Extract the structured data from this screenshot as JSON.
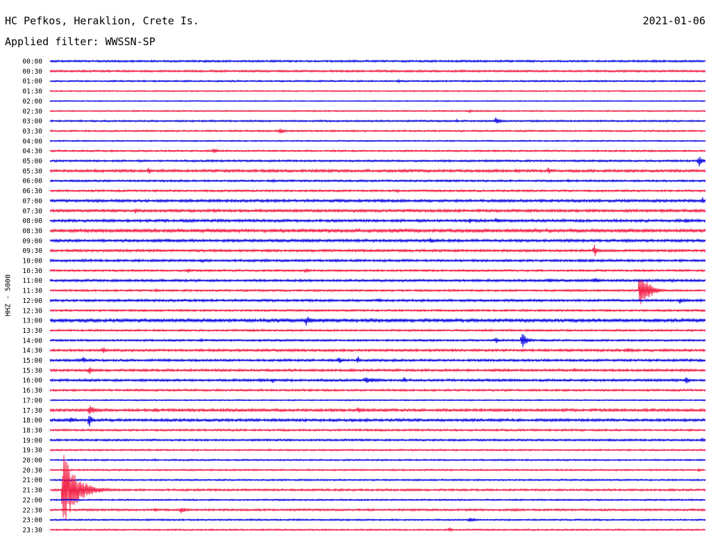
{
  "header": {
    "station": "HC Pefkos, Heraklion, Crete Is.",
    "date": "2021-01-06",
    "filter": "Applied filter: WWSSN-SP"
  },
  "chart_data": {
    "type": "line",
    "title": "HC Pefkos, Heraklion, Crete Is.",
    "subtitle": "Applied filter: WWSSN-SP",
    "date": "2021-01-06",
    "ylabel": "HHZ - 5000",
    "xlabel": "",
    "grid": false,
    "trace_colors": [
      "#0000e0",
      "#f0143c"
    ],
    "tick_labels": [
      "00:00",
      "00:30",
      "01:00",
      "01:30",
      "02:00",
      "02:30",
      "03:00",
      "03:30",
      "04:00",
      "04:30",
      "05:00",
      "05:30",
      "06:00",
      "06:30",
      "07:00",
      "07:30",
      "08:00",
      "08:30",
      "09:00",
      "09:30",
      "10:00",
      "10:30",
      "11:00",
      "11:30",
      "12:00",
      "12:30",
      "13:00",
      "13:30",
      "14:00",
      "14:30",
      "15:00",
      "15:30",
      "16:00",
      "16:30",
      "17:00",
      "17:30",
      "18:00",
      "18:30",
      "19:00",
      "19:30",
      "20:00",
      "20:30",
      "21:00",
      "21:30",
      "22:00",
      "22:30",
      "23:00",
      "23:30"
    ],
    "traces": [
      {
        "start": "00:00",
        "noise": 1.5,
        "events": [
          [
            0.92,
            3,
            15
          ]
        ]
      },
      {
        "start": "00:30",
        "noise": 1.5,
        "events": [
          [
            0.01,
            2,
            8
          ],
          [
            0.05,
            3,
            6
          ]
        ]
      },
      {
        "start": "01:00",
        "noise": 1.2,
        "events": [
          [
            0.53,
            3,
            12
          ]
        ]
      },
      {
        "start": "01:30",
        "noise": 1.0,
        "events": []
      },
      {
        "start": "02:00",
        "noise": 0.8,
        "events": []
      },
      {
        "start": "02:30",
        "noise": 1.0,
        "events": [
          [
            0.64,
            4,
            6
          ]
        ]
      },
      {
        "start": "03:00",
        "noise": 1.3,
        "events": [
          [
            0.62,
            3,
            6
          ],
          [
            0.68,
            6,
            14
          ]
        ]
      },
      {
        "start": "03:30",
        "noise": 1.3,
        "events": [
          [
            0.35,
            5,
            14
          ]
        ]
      },
      {
        "start": "04:00",
        "noise": 1.0,
        "events": []
      },
      {
        "start": "04:30",
        "noise": 1.3,
        "events": [
          [
            0.25,
            5,
            10
          ]
        ]
      },
      {
        "start": "05:00",
        "noise": 1.5,
        "events": [
          [
            0.99,
            10,
            10
          ]
        ]
      },
      {
        "start": "05:30",
        "noise": 2.0,
        "events": [
          [
            0.15,
            7,
            5
          ],
          [
            0.71,
            4,
            10
          ],
          [
            0.76,
            6,
            10
          ]
        ]
      },
      {
        "start": "06:00",
        "noise": 1.5,
        "events": [
          [
            0.34,
            3,
            8
          ],
          [
            0.79,
            3,
            8
          ]
        ]
      },
      {
        "start": "06:30",
        "noise": 1.5,
        "events": [
          [
            0.53,
            4,
            6
          ]
        ]
      },
      {
        "start": "07:00",
        "noise": 2.0,
        "events": [
          [
            0.995,
            6,
            6
          ]
        ]
      },
      {
        "start": "07:30",
        "noise": 2.0,
        "events": [
          [
            0.13,
            4,
            10
          ],
          [
            0.25,
            4,
            6
          ],
          [
            0.73,
            3,
            12
          ]
        ]
      },
      {
        "start": "08:00",
        "noise": 2.0,
        "events": [
          [
            0.64,
            7,
            5
          ],
          [
            0.68,
            4,
            25
          ],
          [
            0.97,
            6,
            12
          ]
        ]
      },
      {
        "start": "08:30",
        "noise": 2.5,
        "events": [
          [
            0.4,
            2,
            40
          ],
          [
            0.7,
            2,
            40
          ]
        ]
      },
      {
        "start": "09:00",
        "noise": 2.0,
        "events": [
          [
            0.08,
            3,
            10
          ],
          [
            0.18,
            4,
            10
          ],
          [
            0.58,
            5,
            14
          ],
          [
            0.98,
            3,
            8
          ]
        ]
      },
      {
        "start": "09:30",
        "noise": 1.8,
        "events": [
          [
            0.26,
            4,
            6
          ],
          [
            0.31,
            3,
            6
          ],
          [
            0.83,
            11,
            8
          ]
        ]
      },
      {
        "start": "10:00",
        "noise": 1.8,
        "events": [
          [
            0.23,
            4,
            14
          ],
          [
            0.33,
            3,
            8
          ]
        ]
      },
      {
        "start": "10:30",
        "noise": 1.5,
        "events": [
          [
            0.21,
            4,
            14
          ],
          [
            0.39,
            5,
            8
          ]
        ]
      },
      {
        "start": "11:00",
        "noise": 1.8,
        "events": [
          [
            0.32,
            3,
            10
          ],
          [
            0.76,
            4,
            12
          ],
          [
            0.83,
            5,
            18
          ],
          [
            0.95,
            3,
            12
          ]
        ]
      },
      {
        "start": "11:30",
        "noise": 1.5,
        "events": [
          [
            0.16,
            3,
            14
          ],
          [
            0.9,
            32,
            22
          ]
        ]
      },
      {
        "start": "12:00",
        "noise": 1.8,
        "events": [
          [
            0.5,
            4,
            12
          ],
          [
            0.96,
            5,
            22
          ]
        ]
      },
      {
        "start": "12:30",
        "noise": 1.5,
        "events": []
      },
      {
        "start": "13:00",
        "noise": 2.5,
        "events": [
          [
            0.39,
            8,
            22
          ]
        ]
      },
      {
        "start": "13:30",
        "noise": 1.5,
        "events": []
      },
      {
        "start": "14:00",
        "noise": 1.5,
        "events": [
          [
            0.23,
            3,
            8
          ],
          [
            0.68,
            6,
            8
          ],
          [
            0.72,
            12,
            14
          ]
        ]
      },
      {
        "start": "14:30",
        "noise": 1.8,
        "events": [
          [
            0.08,
            6,
            12
          ],
          [
            0.23,
            3,
            8
          ],
          [
            0.88,
            4,
            22
          ]
        ]
      },
      {
        "start": "15:00",
        "noise": 1.8,
        "events": [
          [
            0.05,
            7,
            8
          ],
          [
            0.18,
            3,
            10
          ],
          [
            0.44,
            7,
            10
          ],
          [
            0.47,
            9,
            3
          ]
        ]
      },
      {
        "start": "15:30",
        "noise": 1.8,
        "events": [
          [
            0.06,
            8,
            8
          ],
          [
            0.8,
            4,
            8
          ]
        ]
      },
      {
        "start": "16:00",
        "noise": 1.8,
        "events": [
          [
            0.32,
            4,
            8
          ],
          [
            0.34,
            5,
            4
          ],
          [
            0.48,
            5,
            40
          ],
          [
            0.54,
            6,
            6
          ],
          [
            0.97,
            7,
            8
          ]
        ]
      },
      {
        "start": "16:30",
        "noise": 1.5,
        "events": []
      },
      {
        "start": "17:00",
        "noise": 1.0,
        "events": []
      },
      {
        "start": "17:30",
        "noise": 2.0,
        "events": [
          [
            0.06,
            8,
            18
          ],
          [
            0.16,
            6,
            8
          ],
          [
            0.47,
            5,
            14
          ]
        ]
      },
      {
        "start": "18:00",
        "noise": 2.0,
        "events": [
          [
            0.03,
            5,
            20
          ],
          [
            0.06,
            13,
            6
          ],
          [
            0.46,
            4,
            8
          ]
        ]
      },
      {
        "start": "18:30",
        "noise": 1.5,
        "events": []
      },
      {
        "start": "19:00",
        "noise": 1.5,
        "events": [
          [
            0.995,
            5,
            6
          ]
        ]
      },
      {
        "start": "19:30",
        "noise": 1.2,
        "events": []
      },
      {
        "start": "20:00",
        "noise": 1.2,
        "events": [
          [
            0.16,
            3,
            4
          ]
        ]
      },
      {
        "start": "20:30",
        "noise": 1.2,
        "events": [
          [
            0.99,
            4,
            4
          ]
        ]
      },
      {
        "start": "21:00",
        "noise": 1.2,
        "events": []
      },
      {
        "start": "21:30",
        "noise": 1.5,
        "events": [
          [
            0.02,
            54,
            36
          ]
        ]
      },
      {
        "start": "22:00",
        "noise": 1.2,
        "events": []
      },
      {
        "start": "22:30",
        "noise": 1.5,
        "events": [
          [
            0.16,
            5,
            6
          ],
          [
            0.2,
            6,
            14
          ],
          [
            0.71,
            3,
            8
          ]
        ]
      },
      {
        "start": "23:00",
        "noise": 1.2,
        "events": [
          [
            0.64,
            5,
            14
          ]
        ]
      },
      {
        "start": "23:30",
        "noise": 1.2,
        "events": [
          [
            0.61,
            4,
            8
          ]
        ]
      }
    ]
  }
}
